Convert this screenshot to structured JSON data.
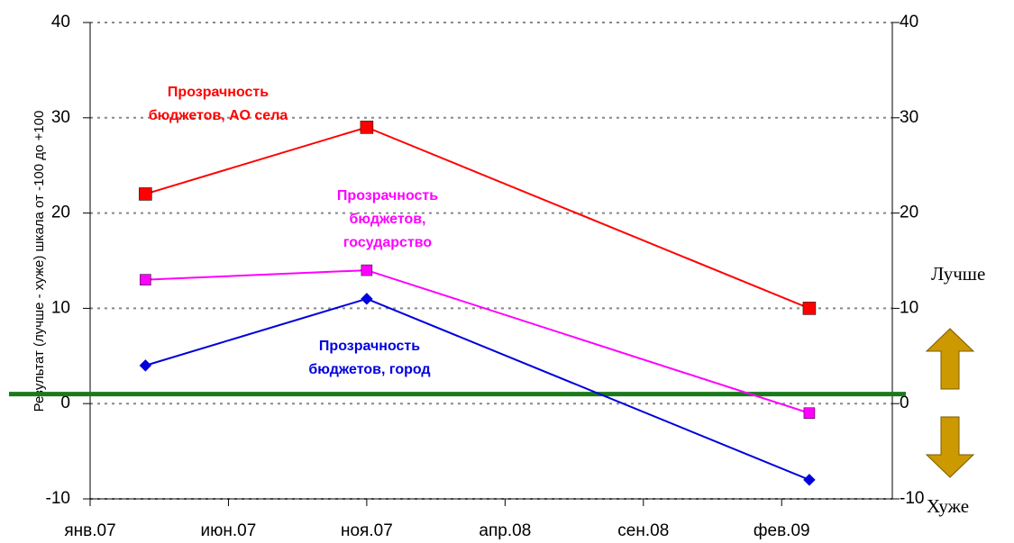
{
  "chart_data": {
    "type": "line",
    "y_label": "Результат (лучше - хуже) шкала от -100 до +100",
    "x": [
      "2007-03",
      "2007-11",
      "2009-03"
    ],
    "xlim": [
      "2007-01",
      "2009-06"
    ],
    "xticks": [
      {
        "value": "2007-01",
        "label": "янв.07"
      },
      {
        "value": "2007-06",
        "label": "июн.07"
      },
      {
        "value": "2007-11",
        "label": "ноя.07"
      },
      {
        "value": "2008-04",
        "label": "апр.08"
      },
      {
        "value": "2008-09",
        "label": "сен.08"
      },
      {
        "value": "2009-02",
        "label": "фев.09"
      }
    ],
    "ylim": [
      -10,
      40
    ],
    "yticks": [
      -10,
      0,
      10,
      20,
      30,
      40
    ],
    "y2lim": [
      -10,
      40
    ],
    "y2ticks": [
      -10,
      0,
      10,
      20,
      30,
      40
    ],
    "grid": true,
    "series": [
      {
        "name": "Прозрачность бюджетов, АО села",
        "color": "#ff0000",
        "marker": "square",
        "values": [
          22,
          29,
          10
        ]
      },
      {
        "name": "Прозрачность бюджетов, государство",
        "color": "#ff00ff",
        "marker": "square",
        "values": [
          13,
          14,
          -1
        ]
      },
      {
        "name": "Прозрачность бюджетов, город",
        "color": "#0000dd",
        "marker": "diamond",
        "values": [
          4,
          11,
          -8
        ]
      }
    ],
    "reference_line": {
      "value": 1,
      "color": "#1a7a1a"
    },
    "annotations": {
      "better": "Лучше",
      "worse": "Хуже"
    }
  }
}
